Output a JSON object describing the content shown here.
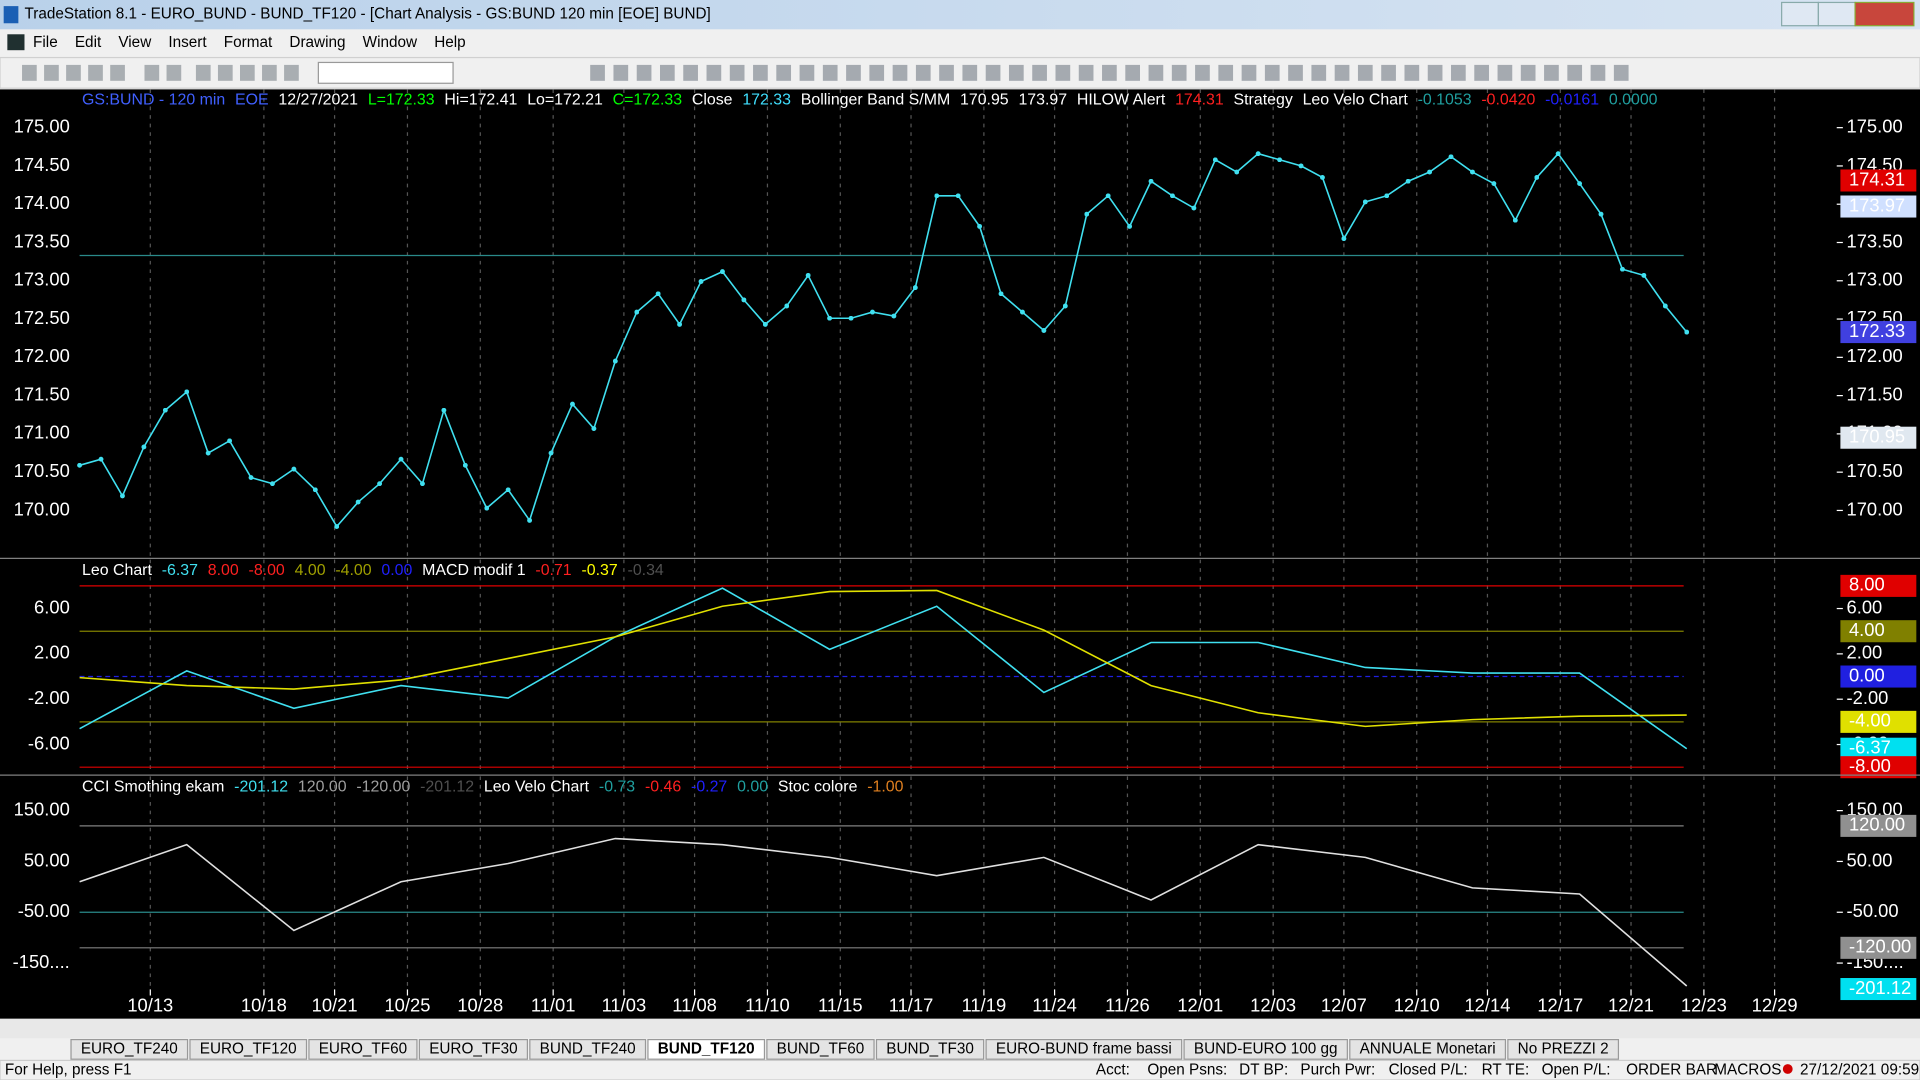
{
  "window": {
    "title": "TradeStation 8.1 - EURO_BUND - BUND_TF120 - [Chart Analysis - GS:BUND  120 min  [EOE] BUND]",
    "menu": [
      "File",
      "Edit",
      "View",
      "Insert",
      "Format",
      "Drawing",
      "Window",
      "Help"
    ],
    "tabs": [
      "EURO_TF240",
      "EURO_TF120",
      "EURO_TF60",
      "EURO_TF30",
      "BUND_TF240",
      "BUND_TF120",
      "BUND_TF60",
      "BUND_TF30",
      "EURO-BUND frame bassi",
      "BUND-EURO 100 gg",
      "ANNUALE Monetari",
      "No PREZZI 2"
    ],
    "status": [
      "For Help, press F1",
      "Acct:",
      "Open Psns:",
      "DT BP:",
      "Purch Pwr:",
      "Closed P/L:",
      "RT TE:",
      "Open P/L:",
      "ORDER BAR",
      "MACROS",
      "27/12/2021 09:59"
    ]
  },
  "chart_data": [
    {
      "type": "line",
      "xlim": [
        0,
        82
      ],
      "ylim": [
        169.39,
        175.5
      ],
      "header": [
        {
          "text": "GS:BUND - 120 min",
          "color": "#4060ff"
        },
        {
          "text": "EOE",
          "color": "#4060ff"
        },
        {
          "text": "12/27/2021",
          "color": "#ffffff"
        },
        {
          "text": "L=172.33",
          "color": "#00ff00"
        },
        {
          "text": "Hi=172.41",
          "color": "#ffffff"
        },
        {
          "text": "Lo=172.21",
          "color": "#ffffff"
        },
        {
          "text": "C=172.33",
          "color": "#00ff00"
        },
        {
          "text": "Close",
          "color": "#ffffff"
        },
        {
          "text": "172.33",
          "color": "#40e0ff"
        },
        {
          "text": "Bollinger Band S/MM",
          "color": "#ffffff"
        },
        {
          "text": "170.95",
          "color": "#ffffff"
        },
        {
          "text": "173.97",
          "color": "#ffffff"
        },
        {
          "text": "HILOW Alert",
          "color": "#ffffff"
        },
        {
          "text": "174.31",
          "color": "#ff2020"
        },
        {
          "text": "Strategy",
          "color": "#ffffff"
        },
        {
          "text": "Leo Velo Chart",
          "color": "#ffffff"
        },
        {
          "text": "-0.1053",
          "color": "#20a0a0"
        },
        {
          "text": "-0.0420",
          "color": "#ff2020"
        },
        {
          "text": "-0.0161",
          "color": "#2020ff"
        },
        {
          "text": "0.0000",
          "color": "#20a0a0"
        }
      ],
      "yticks": [
        {
          "value": 175,
          "label": "175.00"
        },
        {
          "value": 174.5,
          "label": "174.50"
        },
        {
          "value": 174,
          "label": "174.00"
        },
        {
          "value": 173.5,
          "label": "173.50"
        },
        {
          "value": 173,
          "label": "173.00"
        },
        {
          "value": 172.5,
          "label": "172.50"
        },
        {
          "value": 172,
          "label": "172.00"
        },
        {
          "value": 171.5,
          "label": "171.50"
        },
        {
          "value": 171,
          "label": "171.00"
        },
        {
          "value": 170.5,
          "label": "170.50"
        },
        {
          "value": 170,
          "label": "170.00"
        }
      ],
      "levels": [
        {
          "value": 173.33,
          "color": "#2a8a8a"
        }
      ],
      "tags": [
        {
          "value": 174.31,
          "label": "174.31",
          "color": "#e00000",
          "text_color": "#ffffff"
        },
        {
          "value": 173.97,
          "label": "173.97",
          "color": "#d0e0ff",
          "text_color": "#000000"
        },
        {
          "value": 172.33,
          "label": "172.33",
          "color": "#4040e0",
          "text_color": "#ffffff"
        },
        {
          "value": 170.95,
          "label": "170.95",
          "color": "#e0e8f0",
          "text_color": "#000000"
        }
      ],
      "series": [
        {
          "color": "#40e0f0",
          "dotted": true,
          "values": [
            170.59,
            170.67,
            170.19,
            170.83,
            171.31,
            171.55,
            170.75,
            170.91,
            170.43,
            170.35,
            170.54,
            170.27,
            169.79,
            170.11,
            170.35,
            170.67,
            170.35,
            171.31,
            170.59,
            170.03,
            170.27,
            169.87,
            170.75,
            171.39,
            171.07,
            171.95,
            172.59,
            172.83,
            172.43,
            172.99,
            173.12,
            172.75,
            172.43,
            172.67,
            173.07,
            172.51,
            172.51,
            172.59,
            172.54,
            172.91,
            174.11,
            174.11,
            173.71,
            172.83,
            172.59,
            172.35,
            172.67,
            173.87,
            174.11,
            173.71,
            174.3,
            174.11,
            173.95,
            174.58,
            174.42,
            174.66,
            174.58,
            174.5,
            174.35,
            173.55,
            174.03,
            174.11,
            174.3,
            174.42,
            174.62,
            174.42,
            174.27,
            173.79,
            174.35,
            174.66,
            174.27,
            173.87,
            173.15,
            173.07,
            172.67,
            172.33
          ]
        }
      ]
    },
    {
      "type": "line",
      "xlim": [
        0,
        82
      ],
      "ylim": [
        -8.59,
        10.32
      ],
      "header": [
        {
          "text": "Leo Chart",
          "color": "#ffffff"
        },
        {
          "text": "-6.37",
          "color": "#40e0f0"
        },
        {
          "text": "8.00",
          "color": "#ff2020"
        },
        {
          "text": "-8.00",
          "color": "#ff2020"
        },
        {
          "text": "4.00",
          "color": "#a0a000"
        },
        {
          "text": "-4.00",
          "color": "#a0a000"
        },
        {
          "text": "0.00",
          "color": "#2020ff"
        },
        {
          "text": "MACD modif 1",
          "color": "#ffffff"
        },
        {
          "text": "-0.71",
          "color": "#ff2020"
        },
        {
          "text": "-0.37",
          "color": "#ffff00"
        },
        {
          "text": "-0.34",
          "color": "#505050"
        }
      ],
      "yticks": [
        {
          "value": 6,
          "label": "6.00"
        },
        {
          "value": 2,
          "label": "2.00"
        },
        {
          "value": -2,
          "label": "-2.00"
        },
        {
          "value": -6,
          "label": "-6.00"
        }
      ],
      "levels": [
        {
          "value": 8,
          "color": "#e00000"
        },
        {
          "value": 4,
          "color": "#808000"
        },
        {
          "value": 0,
          "color": "#2020e0"
        },
        {
          "value": -4,
          "color": "#808000"
        },
        {
          "value": -8,
          "color": "#e00000"
        }
      ],
      "tags": [
        {
          "value": 8,
          "label": "8.00",
          "color": "#e00000",
          "text_color": "#ffffff"
        },
        {
          "value": 4,
          "label": "4.00",
          "color": "#808000",
          "text_color": "#ffffff"
        },
        {
          "value": 0,
          "label": "0.00",
          "color": "#2020e0",
          "text_color": "#ffffff"
        },
        {
          "value": -4,
          "label": "-4.00",
          "color": "#e0e000",
          "text_color": "#000000"
        },
        {
          "value": -6.37,
          "label": "-6.37",
          "color": "#00e0f0",
          "text_color": "#000000"
        },
        {
          "value": -8,
          "label": "-8.00",
          "color": "#e00000",
          "text_color": "#ffffff"
        }
      ],
      "x": [
        0,
        5,
        10,
        15,
        20,
        25,
        30,
        35,
        40,
        45,
        50,
        55,
        60,
        65,
        70,
        75
      ],
      "series": [
        {
          "color": "#40e0f0",
          "values": [
            -4.6,
            0.5,
            -2.8,
            -0.8,
            -1.9,
            3.5,
            7.8,
            2.4,
            6.2,
            -1.4,
            3,
            3,
            0.8,
            0.3,
            0.3,
            -6.37
          ]
        },
        {
          "color": "#e0e000",
          "values": [
            -0.1,
            -0.8,
            -1.1,
            -0.3,
            1.6,
            3.5,
            6.2,
            7.5,
            7.6,
            4.1,
            -0.8,
            -3.2,
            -4.4,
            -3.8,
            -3.5,
            -3.4
          ]
        }
      ]
    },
    {
      "type": "line",
      "xlim": [
        0,
        82
      ],
      "ylim": [
        -201.8,
        217.5
      ],
      "header": [
        {
          "text": "CCI Smothing ekam",
          "color": "#ffffff"
        },
        {
          "text": "-201.12",
          "color": "#40e0f0"
        },
        {
          "text": "120.00",
          "color": "#a0a0a0"
        },
        {
          "text": "-120.00",
          "color": "#a0a0a0"
        },
        {
          "text": "-201.12",
          "color": "#505050"
        },
        {
          "text": "Leo Velo Chart",
          "color": "#ffffff"
        },
        {
          "text": "-0.73",
          "color": "#20a0a0"
        },
        {
          "text": "-0.46",
          "color": "#ff2020"
        },
        {
          "text": "-0.27",
          "color": "#2020ff"
        },
        {
          "text": "0.00",
          "color": "#20a0a0"
        },
        {
          "text": "Stoc colore",
          "color": "#ffffff"
        },
        {
          "text": "-1.00",
          "color": "#e08020"
        }
      ],
      "yticks": [
        {
          "value": 150,
          "label": "150.00"
        },
        {
          "value": 50,
          "label": "50.00"
        },
        {
          "value": -50,
          "label": "-50.00"
        },
        {
          "value": -150,
          "label": "-150...."
        }
      ],
      "levels": [
        {
          "value": 120,
          "color": "#808080"
        },
        {
          "value": -50,
          "color": "#2a8a8a"
        },
        {
          "value": -120,
          "color": "#808080"
        }
      ],
      "tags": [
        {
          "value": 120,
          "label": "120.00",
          "color": "#909090",
          "text_color": "#ffffff"
        },
        {
          "value": -120,
          "label": "-120.00",
          "color": "#909090",
          "text_color": "#000000"
        },
        {
          "value": -201.12,
          "label": "-201.12",
          "color": "#00e0f0",
          "text_color": "#000000"
        }
      ],
      "x": [
        0,
        5,
        10,
        15,
        20,
        25,
        30,
        35,
        40,
        45,
        50,
        55,
        60,
        65,
        70,
        75
      ],
      "series": [
        {
          "color": "#e0e0e0",
          "values": [
            10,
            83,
            -86,
            10,
            46,
            95,
            83,
            58,
            22,
            58,
            -26,
            83,
            58,
            -2,
            -14,
            -195
          ]
        }
      ],
      "xticks": [
        {
          "value": 3.3,
          "label": "10/13"
        },
        {
          "value": 8.6,
          "label": "10/18"
        },
        {
          "value": 11.9,
          "label": "10/21"
        },
        {
          "value": 15.3,
          "label": "10/25"
        },
        {
          "value": 18.7,
          "label": "10/28"
        },
        {
          "value": 22.1,
          "label": "11/01"
        },
        {
          "value": 25.4,
          "label": "11/03"
        },
        {
          "value": 28.7,
          "label": "11/08"
        },
        {
          "value": 32.1,
          "label": "11/10"
        },
        {
          "value": 35.5,
          "label": "11/15"
        },
        {
          "value": 38.8,
          "label": "11/17"
        },
        {
          "value": 42.2,
          "label": "11/19"
        },
        {
          "value": 45.5,
          "label": "11/24"
        },
        {
          "value": 48.9,
          "label": "11/26"
        },
        {
          "value": 52.3,
          "label": "12/01"
        },
        {
          "value": 55.7,
          "label": "12/03"
        },
        {
          "value": 59,
          "label": "12/07"
        },
        {
          "value": 62.4,
          "label": "12/10"
        },
        {
          "value": 65.7,
          "label": "12/14"
        },
        {
          "value": 69.1,
          "label": "12/17"
        },
        {
          "value": 72.4,
          "label": "12/21"
        },
        {
          "value": 75.8,
          "label": "12/23"
        },
        {
          "value": 79.1,
          "label": "12/29"
        }
      ]
    }
  ]
}
